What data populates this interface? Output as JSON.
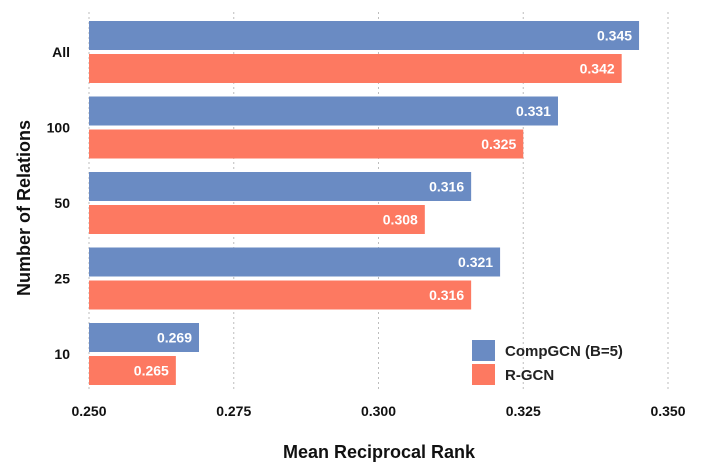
{
  "chart_data": {
    "type": "bar",
    "orientation": "horizontal",
    "categories": [
      "All",
      "100",
      "50",
      "25",
      "10"
    ],
    "series": [
      {
        "name": "CompGCN (B=5)",
        "color": "#6a8bc3",
        "values": [
          0.345,
          0.331,
          0.316,
          0.321,
          0.269
        ]
      },
      {
        "name": "R-GCN",
        "color": "#fd7961",
        "values": [
          0.342,
          0.325,
          0.308,
          0.316,
          0.265
        ]
      }
    ],
    "value_labels": [
      [
        "0.345",
        "0.331",
        "0.316",
        "0.321",
        "0.269"
      ],
      [
        "0.342",
        "0.325",
        "0.308",
        "0.316",
        "0.265"
      ]
    ],
    "xlim": [
      0.25,
      0.35
    ],
    "xticks": [
      0.25,
      0.275,
      0.3,
      0.325,
      0.35
    ],
    "xtick_labels": [
      "0.250",
      "0.275",
      "0.300",
      "0.325",
      "0.350"
    ],
    "xlabel": "Mean Reciprocal Rank",
    "ylabel": "Number of Relations",
    "grid": "vertical-dotted",
    "legend_position": "bottom-right"
  }
}
